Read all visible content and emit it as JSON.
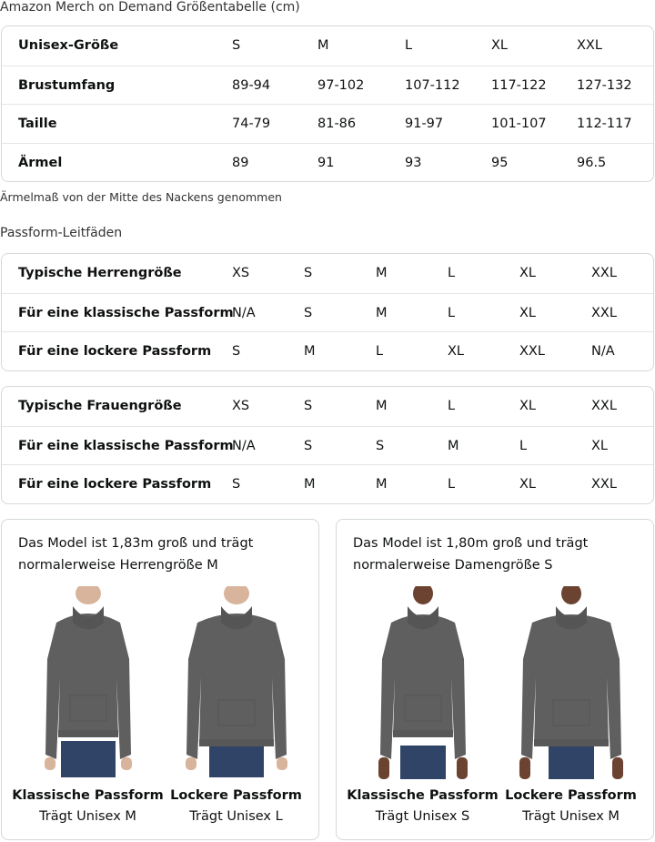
{
  "size_chart": {
    "title": "Amazon Merch on Demand Größentabelle (cm)",
    "rows": [
      {
        "label": "Unisex-Größe",
        "values": [
          "S",
          "M",
          "L",
          "XL",
          "XXL"
        ]
      },
      {
        "label": "Brustumfang",
        "values": [
          "89-94",
          "97-102",
          "107-112",
          "117-122",
          "127-132"
        ]
      },
      {
        "label": "Taille",
        "values": [
          "74-79",
          "81-86",
          "91-97",
          "101-107",
          "112-117"
        ]
      },
      {
        "label": "Ärmel",
        "values": [
          "89",
          "91",
          "93",
          "95",
          "96.5"
        ]
      }
    ],
    "note": "Ärmelmaß von der Mitte des Nackens genommen"
  },
  "fit_guide": {
    "title": "Passform-Leitfäden",
    "men": [
      {
        "label": "Typische Herrengröße",
        "values": [
          "XS",
          "S",
          "M",
          "L",
          "XL",
          "XXL"
        ]
      },
      {
        "label": "Für eine klassische Passform",
        "values": [
          "N/A",
          "S",
          "M",
          "L",
          "XL",
          "XXL"
        ]
      },
      {
        "label": "Für eine lockere Passform",
        "values": [
          "S",
          "M",
          "L",
          "XL",
          "XXL",
          "N/A"
        ]
      }
    ],
    "women": [
      {
        "label": "Typische Frauengröße",
        "values": [
          "XS",
          "S",
          "M",
          "L",
          "XL",
          "XXL"
        ]
      },
      {
        "label": "Für eine klassische Passform",
        "values": [
          "N/A",
          "S",
          "S",
          "M",
          "L",
          "XL"
        ]
      },
      {
        "label": "Für eine lockere Passform",
        "values": [
          "S",
          "M",
          "M",
          "L",
          "XL",
          "XXL"
        ]
      }
    ]
  },
  "models": [
    {
      "text": "Das Model ist 1,83m groß und trägt normalerweise Herrengröße M",
      "figures": [
        {
          "title": "Klassische Passform",
          "sub": "Trägt Unisex M"
        },
        {
          "title": "Lockere Passform",
          "sub": "Trägt Unisex L"
        }
      ]
    },
    {
      "text": "Das Model ist 1,80m groß und trägt normalerweise Damengröße S",
      "figures": [
        {
          "title": "Klassische Passform",
          "sub": "Trägt Unisex S"
        },
        {
          "title": "Lockere Passform",
          "sub": "Trägt Unisex M"
        }
      ]
    }
  ],
  "colors": {
    "hoodie": "#5f5f5f",
    "jeans": "#2f4466",
    "border": "#d5d9d9"
  }
}
